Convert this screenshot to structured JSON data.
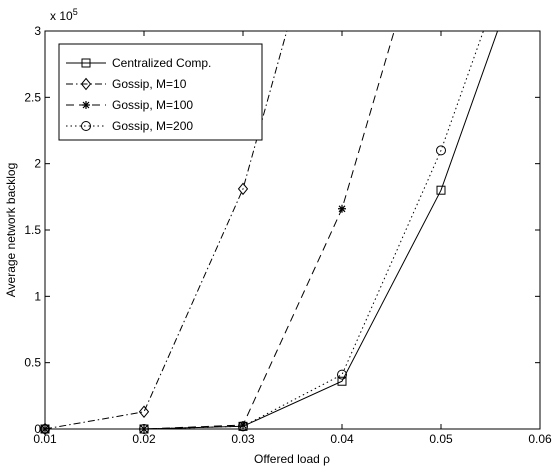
{
  "chart_data": {
    "type": "line",
    "xlabel": "Offered load ρ",
    "ylabel": "Average network backlog",
    "y_multiplier": "x 10",
    "y_exponent": "5",
    "xlim": [
      0.01,
      0.06
    ],
    "ylim": [
      0,
      3
    ],
    "xticks": [
      0.01,
      0.02,
      0.03,
      0.04,
      0.05,
      0.06
    ],
    "yticks": [
      0,
      0.5,
      1,
      1.5,
      2,
      2.5,
      3
    ],
    "xtick_labels": [
      "0.01",
      "0.02",
      "0.03",
      "0.04",
      "0.05",
      "0.06"
    ],
    "ytick_labels": [
      "0",
      "0.5",
      "1",
      "1.5",
      "2",
      "2.5",
      "3"
    ],
    "grid": false,
    "legend_position": "top-left",
    "series": [
      {
        "name": "Centralized Comp.",
        "line_style": "solid",
        "marker": "square",
        "x": [
          0.01,
          0.02,
          0.03,
          0.04,
          0.05,
          0.06
        ],
        "y": [
          0,
          0,
          0.02,
          0.36,
          1.8,
          3.9
        ],
        "marker_x": [
          0.01,
          0.02,
          0.03,
          0.04,
          0.05
        ],
        "marker_y": [
          0,
          0,
          0.02,
          0.36,
          1.8
        ]
      },
      {
        "name": "Gossip, M=10",
        "line_style": "dashdot",
        "marker": "diamond",
        "x": [
          0.01,
          0.02,
          0.03,
          0.04
        ],
        "y": [
          0,
          0.13,
          1.81,
          4.5
        ],
        "marker_x": [
          0.01,
          0.02,
          0.03
        ],
        "marker_y": [
          0,
          0.13,
          1.81
        ]
      },
      {
        "name": "Gossip, M=100",
        "line_style": "dashed",
        "marker": "asterisk",
        "x": [
          0.01,
          0.02,
          0.03,
          0.04,
          0.05
        ],
        "y": [
          0,
          0,
          0.03,
          1.66,
          4.2
        ],
        "marker_x": [
          0.01,
          0.02,
          0.03,
          0.04
        ],
        "marker_y": [
          0,
          0,
          0.03,
          1.66
        ]
      },
      {
        "name": "Gossip, M=200",
        "line_style": "dotted",
        "marker": "circle",
        "x": [
          0.01,
          0.02,
          0.03,
          0.04,
          0.05,
          0.06
        ],
        "y": [
          0,
          0,
          0.02,
          0.41,
          2.1,
          4.2
        ],
        "marker_x": [
          0.01,
          0.02,
          0.03,
          0.04,
          0.05
        ],
        "marker_y": [
          0,
          0,
          0.02,
          0.41,
          2.1
        ]
      }
    ]
  }
}
